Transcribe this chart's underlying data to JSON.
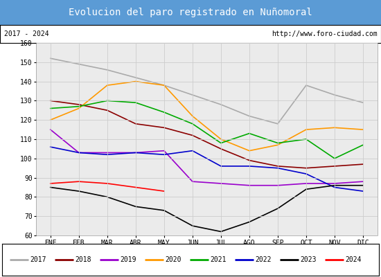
{
  "title": "Evolucion del paro registrado en Nuñomoral",
  "subtitle_left": "2017 - 2024",
  "subtitle_right": "http://www.foro-ciudad.com",
  "months": [
    "ENE",
    "FEB",
    "MAR",
    "ABR",
    "MAY",
    "JUN",
    "JUL",
    "AGO",
    "SEP",
    "OCT",
    "NOV",
    "DIC"
  ],
  "ylim": [
    60,
    160
  ],
  "yticks": [
    60,
    70,
    80,
    90,
    100,
    110,
    120,
    130,
    140,
    150,
    160
  ],
  "series": {
    "2017": {
      "color": "#aaaaaa",
      "values": [
        152,
        149,
        146,
        142,
        138,
        133,
        128,
        122,
        118,
        138,
        133,
        129
      ]
    },
    "2018": {
      "color": "#8b0000",
      "values": [
        130,
        128,
        125,
        118,
        116,
        112,
        105,
        99,
        96,
        95,
        96,
        97
      ]
    },
    "2019": {
      "color": "#9900cc",
      "values": [
        115,
        103,
        103,
        103,
        104,
        88,
        87,
        86,
        86,
        87,
        87,
        88
      ]
    },
    "2020": {
      "color": "#ff9900",
      "values": [
        120,
        126,
        138,
        140,
        138,
        122,
        110,
        104,
        107,
        115,
        116,
        115
      ]
    },
    "2021": {
      "color": "#00aa00",
      "values": [
        126,
        127,
        130,
        129,
        124,
        118,
        108,
        113,
        108,
        110,
        100,
        107
      ]
    },
    "2022": {
      "color": "#0000cc",
      "values": [
        106,
        103,
        102,
        103,
        102,
        104,
        96,
        96,
        95,
        92,
        85,
        83
      ]
    },
    "2023": {
      "color": "#000000",
      "values": [
        85,
        83,
        80,
        75,
        73,
        65,
        62,
        67,
        74,
        84,
        86,
        86
      ]
    },
    "2024": {
      "color": "#ff0000",
      "values": [
        87,
        88,
        87,
        85,
        83,
        null,
        null,
        null,
        null,
        null,
        null,
        null
      ]
    }
  },
  "background_color": "#ebebeb",
  "title_bg_color": "#5b9bd5",
  "title_color": "#ffffff",
  "subtitle_bg_color": "#ffffff",
  "subtitle_color": "#000000",
  "grid_color": "#cccccc",
  "title_fontsize": 10,
  "subtitle_fontsize": 7,
  "tick_fontsize": 7,
  "legend_fontsize": 7
}
